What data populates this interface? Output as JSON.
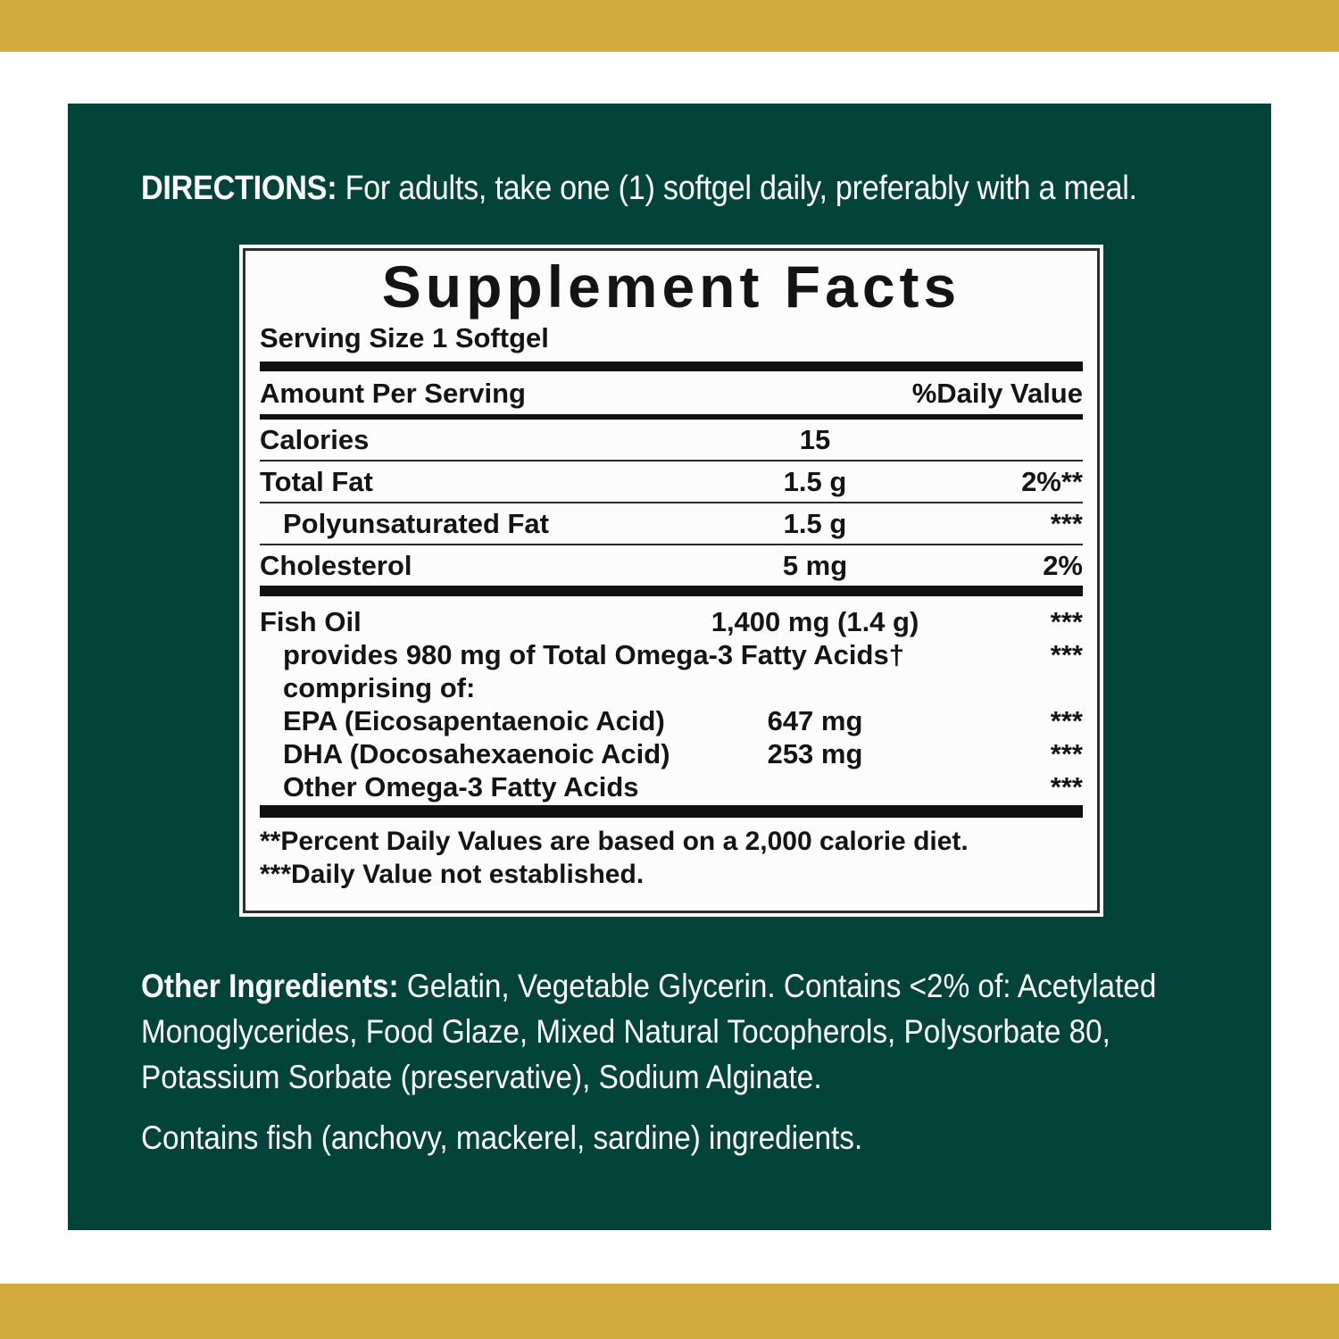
{
  "palette": {
    "gold": "#d2ab3d",
    "panel_green": "#02443a",
    "box_border": "#2e2e2e",
    "text_black": "#141414",
    "text_white": "#ffffff"
  },
  "directions": {
    "label": "DIRECTIONS:",
    "text": " For adults, take one (1) softgel daily, preferably with a meal."
  },
  "supplement_facts": {
    "title": "Supplement Facts",
    "serving_size": "Serving Size 1 Softgel",
    "columns": {
      "amount_header": "Amount Per Serving",
      "dv_header": "%Daily Value"
    },
    "rows": [
      {
        "name": "Calories",
        "amount": "15",
        "dv": ""
      },
      {
        "name": "Total Fat",
        "amount": "1.5 g",
        "dv": "2%**"
      },
      {
        "name": "Polyunsaturated Fat",
        "amount": "1.5 g",
        "dv": "***"
      },
      {
        "name": "Cholesterol",
        "amount": "5 mg",
        "dv": "2%"
      },
      {
        "name": "Fish Oil",
        "amount": "1,400 mg (1.4 g)",
        "dv": "***"
      },
      {
        "name": "provides 980 mg of Total Omega-3 Fatty Acids†",
        "amount": "",
        "dv": "***"
      },
      {
        "name": "comprising of:",
        "amount": "",
        "dv": ""
      },
      {
        "name": "EPA (Eicosapentaenoic Acid)",
        "amount": "647 mg",
        "dv": "***"
      },
      {
        "name": "DHA (Docosahexaenoic Acid)",
        "amount": "253 mg",
        "dv": "***"
      },
      {
        "name": "Other Omega-3 Fatty Acids",
        "amount": "",
        "dv": "***"
      }
    ],
    "footnotes": [
      "**Percent Daily Values are based on a 2,000 calorie diet.",
      "***Daily Value not established."
    ]
  },
  "other_ingredients": {
    "label": "Other Ingredients:",
    "line1_rest": " Gelatin, Vegetable Glycerin. Contains <2% of: Acetylated",
    "line2": "Monoglycerides, Food Glaze, Mixed Natural Tocopherols, Polysorbate 80,",
    "line3": "Potassium Sorbate (preservative), Sodium Alginate."
  },
  "allergen": {
    "text": "Contains fish (anchovy, mackerel, sardine) ingredients."
  }
}
